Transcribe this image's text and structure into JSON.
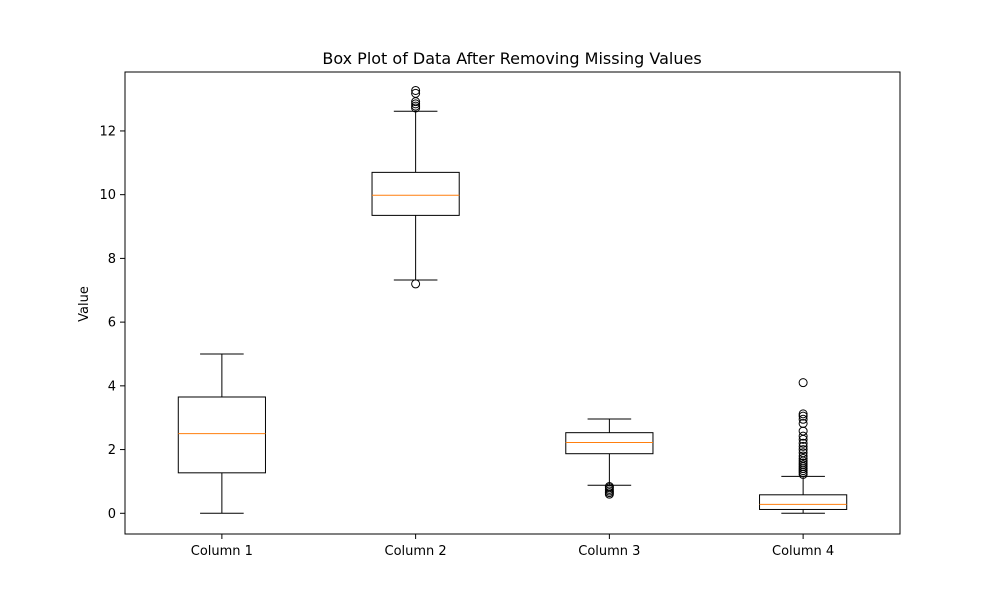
{
  "chart_data": {
    "type": "box",
    "title": "Box Plot of Data After Removing Missing Values",
    "xlabel": "",
    "ylabel": "Value",
    "ylim": [
      -0.65,
      13.85
    ],
    "yticks": [
      0,
      2,
      4,
      6,
      8,
      10,
      12
    ],
    "grid": false,
    "colors": {
      "box": "#000000",
      "median": "#ff7f0e",
      "axes": "#000000"
    },
    "series": [
      {
        "name": "Column 1",
        "whisker_low": 0.0,
        "q1": 1.27,
        "median": 2.5,
        "q3": 3.65,
        "whisker_high": 5.0,
        "outliers": []
      },
      {
        "name": "Column 2",
        "whisker_low": 7.32,
        "q1": 9.35,
        "median": 9.98,
        "q3": 10.7,
        "whisker_high": 12.62,
        "outliers": [
          7.2,
          12.72,
          12.78,
          12.85,
          12.92,
          13.18,
          13.27
        ]
      },
      {
        "name": "Column 3",
        "whisker_low": 0.88,
        "q1": 1.87,
        "median": 2.22,
        "q3": 2.53,
        "whisker_high": 2.96,
        "outliers": [
          0.6,
          0.65,
          0.7,
          0.75,
          0.8,
          0.84
        ]
      },
      {
        "name": "Column 4",
        "whisker_low": 0.0,
        "q1": 0.12,
        "median": 0.28,
        "q3": 0.58,
        "whisker_high": 1.16,
        "outliers": [
          1.22,
          1.28,
          1.34,
          1.4,
          1.46,
          1.52,
          1.58,
          1.64,
          1.72,
          1.8,
          1.9,
          2.0,
          2.1,
          2.2,
          2.32,
          2.42,
          2.58,
          2.82,
          2.95,
          3.05,
          3.12,
          4.1
        ]
      }
    ]
  }
}
